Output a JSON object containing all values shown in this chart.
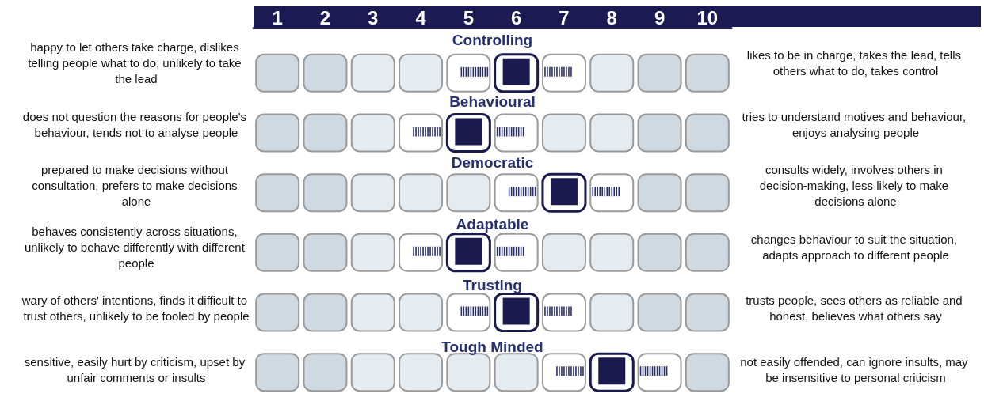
{
  "chart_data": {
    "type": "scatter",
    "orientation": "horizontal",
    "marker": "square",
    "color": "#1b1a4f",
    "categories": [
      "Controlling",
      "Behavioural",
      "Democratic",
      "Adaptable",
      "Trusting",
      "Tough Minded"
    ],
    "values": [
      6,
      5,
      7,
      5,
      6,
      8
    ],
    "xlim": [
      0.5,
      10.5
    ],
    "xticks": [
      1,
      2,
      3,
      4,
      5,
      6,
      7,
      8,
      9,
      10
    ],
    "annotations": [
      "happy to let others take charge, dislikes telling people what to do, unlikely to take the lead",
      "likes to be in charge, takes the lead, tells others what to do, takes control",
      "does not question the reasons for people's behaviour, tends not to analyse people",
      "tries to understand motives and behaviour, enjoys analysing people",
      "prepared to make decisions without consultation, prefers to make decisions alone",
      "consults widely, involves others in decision-making, less likely to make decisions alone",
      "behaves consistently across situations, unlikely to behave differently with different people",
      "changes behaviour to suit the situation, adapts approach to different people",
      "wary of others' intentions, finds it difficult to trust others, unlikely to be fooled by people",
      "trusts people, sees others as reliable and honest, believes what others say",
      "sensitive, easily hurt by criticism, upset by unfair comments or insults",
      "not easily offended, can ignore insults, may be insensitive to personal criticism"
    ]
  }
}
